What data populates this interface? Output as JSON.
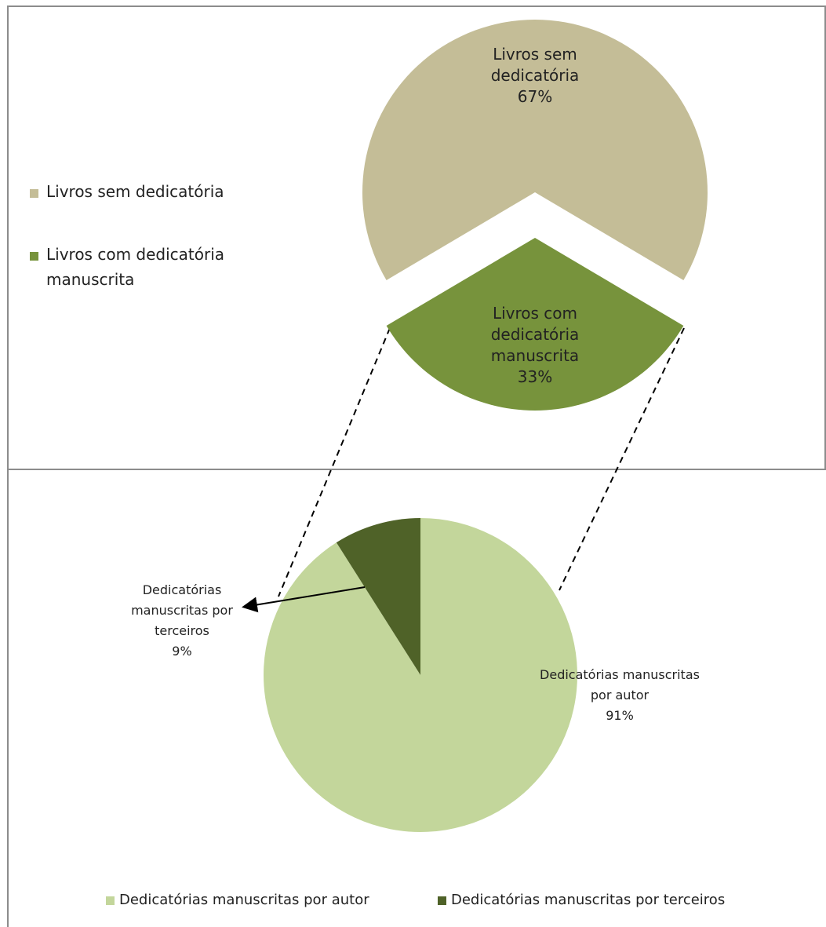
{
  "chart_data": [
    {
      "type": "pie",
      "categories": [
        "Livros sem dedicatória",
        "Livros com dedicatória manuscrita"
      ],
      "values": [
        67,
        33
      ],
      "value_labels": [
        "67%",
        "33%"
      ],
      "colors": [
        "#c4bd97",
        "#77933c"
      ],
      "legend": "left"
    },
    {
      "type": "pie",
      "categories": [
        "Dedicatórias manuscritas por autor",
        "Dedicatórias manuscritas por terceiros"
      ],
      "values": [
        91,
        9
      ],
      "value_labels": [
        "91%",
        "9%"
      ],
      "colors": [
        "#c3d69b",
        "#4f6228"
      ],
      "legend": "bottom"
    }
  ]
}
